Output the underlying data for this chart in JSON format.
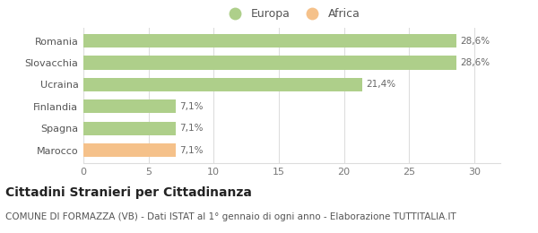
{
  "categories": [
    "Romania",
    "Slovacchia",
    "Ucraina",
    "Finlandia",
    "Spagna",
    "Marocco"
  ],
  "values": [
    28.6,
    28.6,
    21.4,
    7.1,
    7.1,
    7.1
  ],
  "colors": [
    "#aecf8a",
    "#aecf8a",
    "#aecf8a",
    "#aecf8a",
    "#aecf8a",
    "#f5c18a"
  ],
  "labels": [
    "28,6%",
    "28,6%",
    "21,4%",
    "7,1%",
    "7,1%",
    "7,1%"
  ],
  "legend": [
    {
      "label": "Europa",
      "color": "#aecf8a"
    },
    {
      "label": "Africa",
      "color": "#f5c18a"
    }
  ],
  "xlim": [
    0,
    32
  ],
  "xticks": [
    0,
    5,
    10,
    15,
    20,
    25,
    30
  ],
  "title": "Cittadini Stranieri per Cittadinanza",
  "subtitle": "COMUNE DI FORMAZZA (VB) - Dati ISTAT al 1° gennaio di ogni anno - Elaborazione TUTTITALIA.IT",
  "background_color": "#ffffff",
  "grid_color": "#dddddd",
  "title_fontsize": 10,
  "subtitle_fontsize": 7.5,
  "label_fontsize": 7.5,
  "tick_fontsize": 8,
  "legend_fontsize": 9
}
